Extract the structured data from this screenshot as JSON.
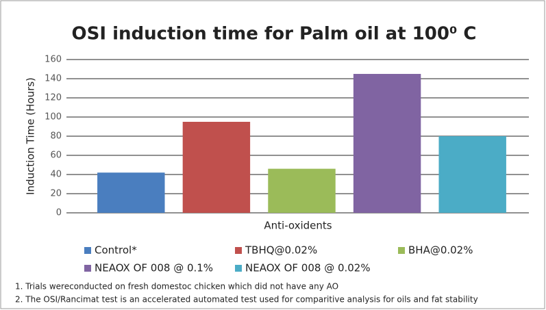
{
  "chart_data": {
    "type": "bar",
    "title": "OSI induction time for Palm oil at 100⁰ C",
    "y_label": "Induction Time (Hours)",
    "x_label": "Anti-oxidents",
    "categories": [
      "Control*",
      "TBHQ@0.02%",
      "BHA@0.02%",
      "NEAOX OF 008 @ 0.1%",
      "NEAOX OF 008 @ 0.02%"
    ],
    "values": [
      42,
      95,
      46,
      145,
      80
    ],
    "colors": [
      "#4a7ebf",
      "#c0504d",
      "#9bbb59",
      "#8064a2",
      "#4bacc6"
    ],
    "ylim": [
      0,
      160
    ],
    "yticks": [
      0,
      20,
      40,
      60,
      80,
      100,
      120,
      140,
      160
    ],
    "grid": true,
    "legend": "bottom",
    "notes": [
      "1. Trials wereconducted on fresh domestoc chicken which did not have any AO",
      "2. The OSI/Rancimat test is an accelerated automated test used for comparitive analysis for oils and fat stability"
    ]
  }
}
